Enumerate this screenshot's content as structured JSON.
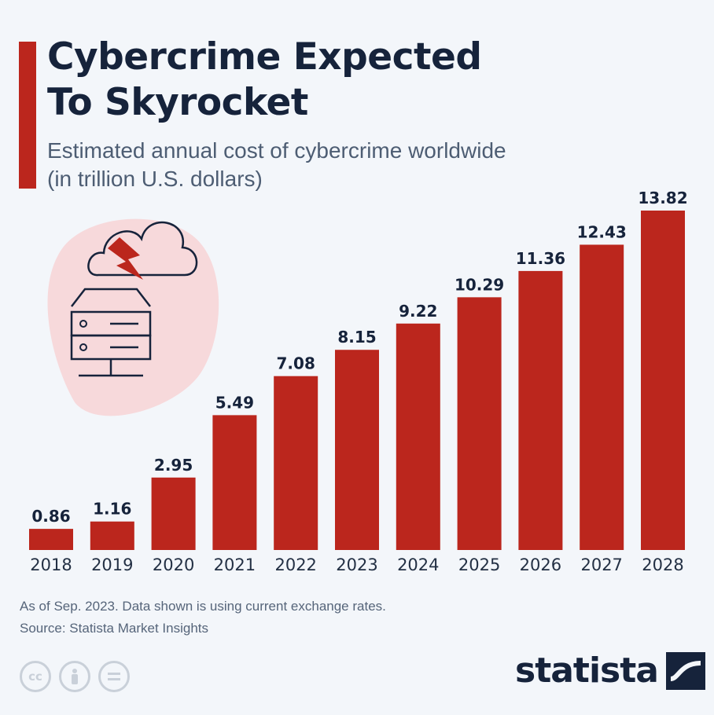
{
  "header": {
    "title_line1": "Cybercrime Expected",
    "title_line2": "To Skyrocket",
    "subtitle_line1": "Estimated annual cost of cybercrime worldwide",
    "subtitle_line2": "(in trillion U.S. dollars)"
  },
  "colors": {
    "bar": "#bb261d",
    "accent": "#bb261d",
    "title": "#16233b",
    "background": "#f3f6fa"
  },
  "illustration": {
    "icon": "cloud-server-lightning-icon"
  },
  "chart_data": {
    "type": "bar",
    "title": "Cybercrime Expected To Skyrocket",
    "subtitle": "Estimated annual cost of cybercrime worldwide (in trillion U.S. dollars)",
    "categories": [
      "2018",
      "2019",
      "2020",
      "2021",
      "2022",
      "2023",
      "2024",
      "2025",
      "2026",
      "2027",
      "2028"
    ],
    "values": [
      0.86,
      1.16,
      2.95,
      5.49,
      7.08,
      8.15,
      9.22,
      10.29,
      11.36,
      12.43,
      13.82
    ],
    "value_labels": [
      "0.86",
      "1.16",
      "2.95",
      "5.49",
      "7.08",
      "8.15",
      "9.22",
      "10.29",
      "11.36",
      "12.43",
      "13.82"
    ],
    "xlabel": "",
    "ylabel": "",
    "ylim": [
      0,
      13.82
    ],
    "grid": false,
    "legend": "none"
  },
  "footer": {
    "note": "As of Sep. 2023. Data shown is using current exchange rates.",
    "source": "Source: Statista Market Insights",
    "license_icons": [
      "cc-icon",
      "by-person-icon",
      "nd-equals-icon"
    ],
    "brand": "statista"
  }
}
